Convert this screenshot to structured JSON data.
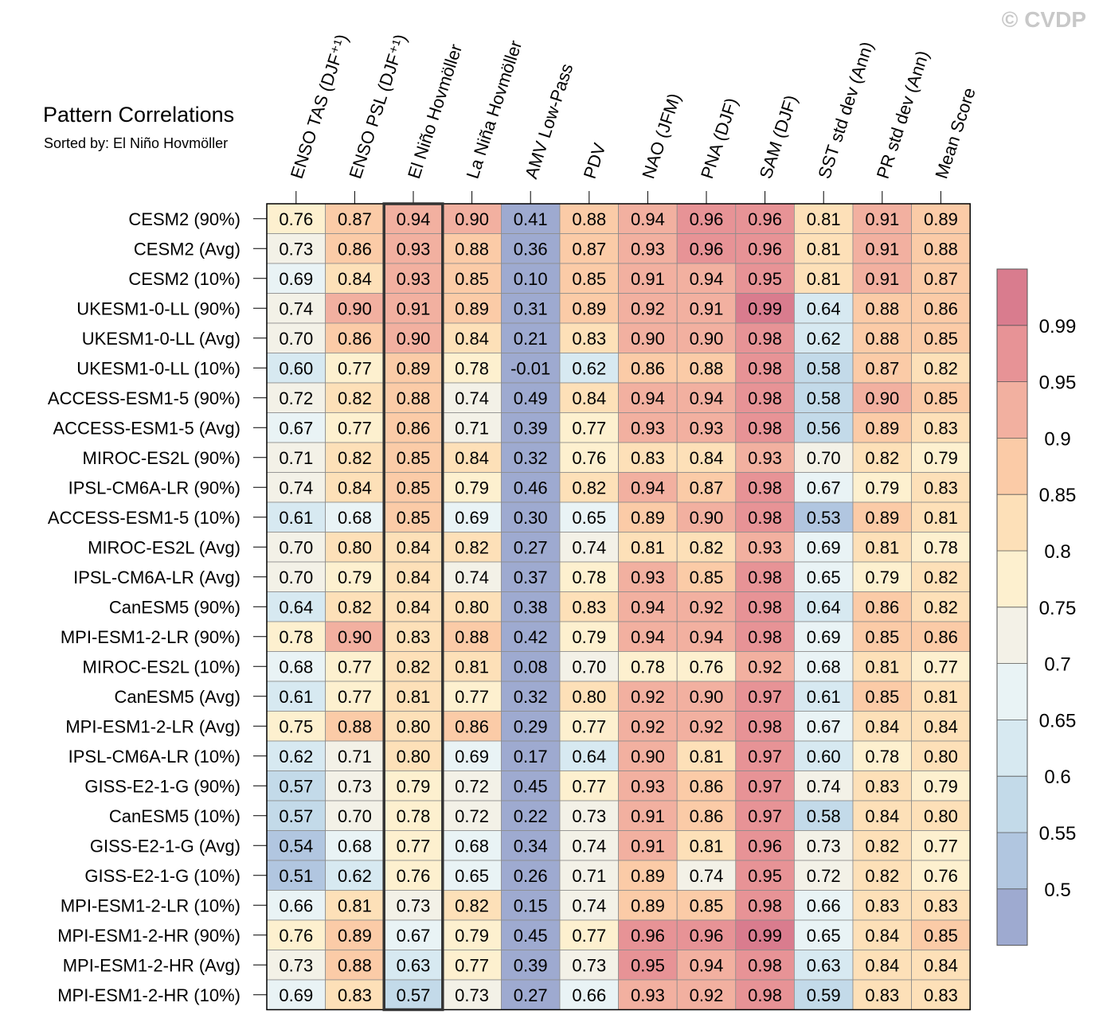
{
  "watermark": "© CVDP",
  "chart_data": {
    "type": "heatmap",
    "title": "Pattern Correlations",
    "subtitle": "Sorted by: El Niño Hovmöller",
    "highlighted_column": "El Niño Hovmöller",
    "columns": [
      "ENSO TAS (DJF⁺¹)",
      "ENSO PSL (DJF⁺¹)",
      "El Niño Hovmöller",
      "La Niña Hovmöller",
      "AMV Low-Pass",
      "PDV",
      "NAO (JFM)",
      "PNA (DJF)",
      "SAM (DJF)",
      "SST std dev (Ann)",
      "PR std dev (Ann)",
      "Mean Score"
    ],
    "rows": [
      "CESM2 (90%)",
      "CESM2 (Avg)",
      "CESM2 (10%)",
      "UKESM1-0-LL (90%)",
      "UKESM1-0-LL (Avg)",
      "UKESM1-0-LL (10%)",
      "ACCESS-ESM1-5 (90%)",
      "ACCESS-ESM1-5 (Avg)",
      "MIROC-ES2L (90%)",
      "IPSL-CM6A-LR (90%)",
      "ACCESS-ESM1-5 (10%)",
      "MIROC-ES2L (Avg)",
      "IPSL-CM6A-LR (Avg)",
      "CanESM5 (90%)",
      "MPI-ESM1-2-LR (90%)",
      "MIROC-ES2L (10%)",
      "CanESM5 (Avg)",
      "MPI-ESM1-2-LR (Avg)",
      "IPSL-CM6A-LR (10%)",
      "GISS-E2-1-G (90%)",
      "CanESM5 (10%)",
      "GISS-E2-1-G (Avg)",
      "GISS-E2-1-G (10%)",
      "MPI-ESM1-2-LR (10%)",
      "MPI-ESM1-2-HR (90%)",
      "MPI-ESM1-2-HR (Avg)",
      "MPI-ESM1-2-HR (10%)"
    ],
    "values": [
      [
        "0.76",
        "0.87",
        "0.94",
        "0.90",
        "0.41",
        "0.88",
        "0.94",
        "0.96",
        "0.96",
        "0.81",
        "0.91",
        "0.89"
      ],
      [
        "0.73",
        "0.86",
        "0.93",
        "0.88",
        "0.36",
        "0.87",
        "0.93",
        "0.96",
        "0.96",
        "0.81",
        "0.91",
        "0.88"
      ],
      [
        "0.69",
        "0.84",
        "0.93",
        "0.85",
        "0.10",
        "0.85",
        "0.91",
        "0.94",
        "0.95",
        "0.81",
        "0.91",
        "0.87"
      ],
      [
        "0.74",
        "0.90",
        "0.91",
        "0.89",
        "0.31",
        "0.89",
        "0.92",
        "0.91",
        "0.99",
        "0.64",
        "0.88",
        "0.86"
      ],
      [
        "0.70",
        "0.86",
        "0.90",
        "0.84",
        "0.21",
        "0.83",
        "0.90",
        "0.90",
        "0.98",
        "0.62",
        "0.88",
        "0.85"
      ],
      [
        "0.60",
        "0.77",
        "0.89",
        "0.78",
        "-0.01",
        "0.62",
        "0.86",
        "0.88",
        "0.98",
        "0.58",
        "0.87",
        "0.82"
      ],
      [
        "0.72",
        "0.82",
        "0.88",
        "0.74",
        "0.49",
        "0.84",
        "0.94",
        "0.94",
        "0.98",
        "0.58",
        "0.90",
        "0.85"
      ],
      [
        "0.67",
        "0.77",
        "0.86",
        "0.71",
        "0.39",
        "0.77",
        "0.93",
        "0.93",
        "0.98",
        "0.56",
        "0.89",
        "0.83"
      ],
      [
        "0.71",
        "0.82",
        "0.85",
        "0.84",
        "0.32",
        "0.76",
        "0.83",
        "0.84",
        "0.93",
        "0.70",
        "0.82",
        "0.79"
      ],
      [
        "0.74",
        "0.84",
        "0.85",
        "0.79",
        "0.46",
        "0.82",
        "0.94",
        "0.87",
        "0.98",
        "0.67",
        "0.79",
        "0.83"
      ],
      [
        "0.61",
        "0.68",
        "0.85",
        "0.69",
        "0.30",
        "0.65",
        "0.89",
        "0.90",
        "0.98",
        "0.53",
        "0.89",
        "0.81"
      ],
      [
        "0.70",
        "0.80",
        "0.84",
        "0.82",
        "0.27",
        "0.74",
        "0.81",
        "0.82",
        "0.93",
        "0.69",
        "0.81",
        "0.78"
      ],
      [
        "0.70",
        "0.79",
        "0.84",
        "0.74",
        "0.37",
        "0.78",
        "0.93",
        "0.85",
        "0.98",
        "0.65",
        "0.79",
        "0.82"
      ],
      [
        "0.64",
        "0.82",
        "0.84",
        "0.80",
        "0.38",
        "0.83",
        "0.94",
        "0.92",
        "0.98",
        "0.64",
        "0.86",
        "0.82"
      ],
      [
        "0.78",
        "0.90",
        "0.83",
        "0.88",
        "0.42",
        "0.79",
        "0.94",
        "0.94",
        "0.98",
        "0.69",
        "0.85",
        "0.86"
      ],
      [
        "0.68",
        "0.77",
        "0.82",
        "0.81",
        "0.08",
        "0.70",
        "0.78",
        "0.76",
        "0.92",
        "0.68",
        "0.81",
        "0.77"
      ],
      [
        "0.61",
        "0.77",
        "0.81",
        "0.77",
        "0.32",
        "0.80",
        "0.92",
        "0.90",
        "0.97",
        "0.61",
        "0.85",
        "0.81"
      ],
      [
        "0.75",
        "0.88",
        "0.80",
        "0.86",
        "0.29",
        "0.77",
        "0.92",
        "0.92",
        "0.98",
        "0.67",
        "0.84",
        "0.84"
      ],
      [
        "0.62",
        "0.71",
        "0.80",
        "0.69",
        "0.17",
        "0.64",
        "0.90",
        "0.81",
        "0.97",
        "0.60",
        "0.78",
        "0.80"
      ],
      [
        "0.57",
        "0.73",
        "0.79",
        "0.72",
        "0.45",
        "0.77",
        "0.93",
        "0.86",
        "0.97",
        "0.74",
        "0.83",
        "0.79"
      ],
      [
        "0.57",
        "0.70",
        "0.78",
        "0.72",
        "0.22",
        "0.73",
        "0.91",
        "0.86",
        "0.97",
        "0.58",
        "0.84",
        "0.80"
      ],
      [
        "0.54",
        "0.68",
        "0.77",
        "0.68",
        "0.34",
        "0.74",
        "0.91",
        "0.81",
        "0.96",
        "0.73",
        "0.82",
        "0.77"
      ],
      [
        "0.51",
        "0.62",
        "0.76",
        "0.65",
        "0.26",
        "0.71",
        "0.89",
        "0.74",
        "0.95",
        "0.72",
        "0.82",
        "0.76"
      ],
      [
        "0.66",
        "0.81",
        "0.73",
        "0.82",
        "0.15",
        "0.74",
        "0.89",
        "0.85",
        "0.98",
        "0.66",
        "0.83",
        "0.83"
      ],
      [
        "0.76",
        "0.89",
        "0.67",
        "0.79",
        "0.45",
        "0.77",
        "0.96",
        "0.96",
        "0.99",
        "0.65",
        "0.84",
        "0.85"
      ],
      [
        "0.73",
        "0.88",
        "0.63",
        "0.77",
        "0.39",
        "0.73",
        "0.95",
        "0.94",
        "0.98",
        "0.63",
        "0.84",
        "0.84"
      ],
      [
        "0.69",
        "0.83",
        "0.57",
        "0.73",
        "0.27",
        "0.66",
        "0.93",
        "0.92",
        "0.98",
        "0.59",
        "0.83",
        "0.83"
      ]
    ],
    "colorbar": {
      "labels": [
        "0.99",
        "0.95",
        "0.9",
        "0.85",
        "0.8",
        "0.75",
        "0.7",
        "0.65",
        "0.6",
        "0.55",
        "0.5"
      ],
      "bin_edges": [
        0.5,
        0.55,
        0.6,
        0.65,
        0.7,
        0.75,
        0.8,
        0.85,
        0.9,
        0.95,
        0.99
      ],
      "colors": [
        "#9eaad0",
        "#b1c6e0",
        "#c3dae9",
        "#d7e9f1",
        "#e9f3f5",
        "#f3f1e7",
        "#fdf0cf",
        "#fde0b8",
        "#fbcba7",
        "#f2b0a0",
        "#e79396",
        "#d97c8e"
      ]
    }
  }
}
